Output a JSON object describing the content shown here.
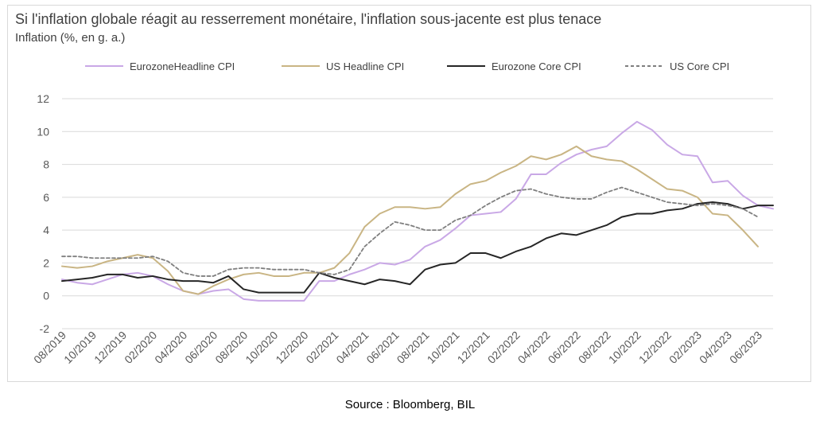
{
  "title": "Si l'inflation globale réagit au resserrement monétaire, l'inflation sous-jacente est plus tenace",
  "subtitle": "Inflation (%, en g. a.)",
  "source": "Source : Bloomberg, BIL",
  "chart_data": {
    "type": "line",
    "title": "Si l'inflation globale réagit au resserrement monétaire, l'inflation sous-jacente est plus tenace",
    "ylabel": "Inflation (%, en g. a.)",
    "xlabel": "",
    "ylim": [
      -2,
      12
    ],
    "yticks": [
      -2,
      0,
      2,
      4,
      6,
      8,
      10,
      12
    ],
    "grid": true,
    "legend_position": "top",
    "x": [
      "08/2019",
      "09/2019",
      "10/2019",
      "11/2019",
      "12/2019",
      "01/2020",
      "02/2020",
      "03/2020",
      "04/2020",
      "05/2020",
      "06/2020",
      "07/2020",
      "08/2020",
      "09/2020",
      "10/2020",
      "11/2020",
      "12/2020",
      "01/2021",
      "02/2021",
      "03/2021",
      "04/2021",
      "05/2021",
      "06/2021",
      "07/2021",
      "08/2021",
      "09/2021",
      "10/2021",
      "11/2021",
      "12/2021",
      "01/2022",
      "02/2022",
      "03/2022",
      "04/2022",
      "05/2022",
      "06/2022",
      "07/2022",
      "08/2022",
      "09/2022",
      "10/2022",
      "11/2022",
      "12/2022",
      "01/2023",
      "02/2023",
      "03/2023",
      "04/2023",
      "05/2023",
      "06/2023",
      "07/2023"
    ],
    "xtick_labels": [
      "08/2019",
      "10/2019",
      "12/2019",
      "02/2020",
      "04/2020",
      "06/2020",
      "08/2020",
      "10/2020",
      "12/2020",
      "02/2021",
      "04/2021",
      "06/2021",
      "08/2021",
      "10/2021",
      "12/2021",
      "02/2022",
      "04/2022",
      "06/2022",
      "08/2022",
      "10/2022",
      "12/2022",
      "02/2023",
      "04/2023",
      "06/2023"
    ],
    "series": [
      {
        "name": "EurozoneHeadline CPI",
        "color": "#c9a8e6",
        "dash": false,
        "values": [
          1.0,
          0.8,
          0.7,
          1.0,
          1.3,
          1.4,
          1.2,
          0.7,
          0.3,
          0.1,
          0.3,
          0.4,
          -0.2,
          -0.3,
          -0.3,
          -0.3,
          -0.3,
          0.9,
          0.9,
          1.3,
          1.6,
          2.0,
          1.9,
          2.2,
          3.0,
          3.4,
          4.1,
          4.9,
          5.0,
          5.1,
          5.9,
          7.4,
          7.4,
          8.1,
          8.6,
          8.9,
          9.1,
          9.9,
          10.6,
          10.1,
          9.2,
          8.6,
          8.5,
          6.9,
          7.0,
          6.1,
          5.5,
          5.3
        ]
      },
      {
        "name": "US Headline CPI",
        "color": "#c9b584",
        "dash": false,
        "values": [
          1.8,
          1.7,
          1.8,
          2.1,
          2.3,
          2.5,
          2.3,
          1.5,
          0.3,
          0.1,
          0.6,
          1.0,
          1.3,
          1.4,
          1.2,
          1.2,
          1.4,
          1.4,
          1.7,
          2.6,
          4.2,
          5.0,
          5.4,
          5.4,
          5.3,
          5.4,
          6.2,
          6.8,
          7.0,
          7.5,
          7.9,
          8.5,
          8.3,
          8.6,
          9.1,
          8.5,
          8.3,
          8.2,
          7.7,
          7.1,
          6.5,
          6.4,
          6.0,
          5.0,
          4.9,
          4.0,
          3.0,
          null
        ]
      },
      {
        "name": "Eurozone Core CPI",
        "color": "#262626",
        "dash": false,
        "values": [
          0.9,
          1.0,
          1.1,
          1.3,
          1.3,
          1.1,
          1.2,
          1.0,
          0.9,
          0.9,
          0.8,
          1.2,
          0.4,
          0.2,
          0.2,
          0.2,
          0.2,
          1.4,
          1.1,
          0.9,
          0.7,
          1.0,
          0.9,
          0.7,
          1.6,
          1.9,
          2.0,
          2.6,
          2.6,
          2.3,
          2.7,
          3.0,
          3.5,
          3.8,
          3.7,
          4.0,
          4.3,
          4.8,
          5.0,
          5.0,
          5.2,
          5.3,
          5.6,
          5.7,
          5.6,
          5.3,
          5.5,
          5.5
        ]
      },
      {
        "name": "US Core CPI",
        "color": "#7f7f7f",
        "dash": true,
        "values": [
          2.4,
          2.4,
          2.3,
          2.3,
          2.3,
          2.3,
          2.4,
          2.1,
          1.4,
          1.2,
          1.2,
          1.6,
          1.7,
          1.7,
          1.6,
          1.6,
          1.6,
          1.4,
          1.3,
          1.6,
          3.0,
          3.8,
          4.5,
          4.3,
          4.0,
          4.0,
          4.6,
          4.9,
          5.5,
          6.0,
          6.4,
          6.5,
          6.2,
          6.0,
          5.9,
          5.9,
          6.3,
          6.6,
          6.3,
          6.0,
          5.7,
          5.6,
          5.5,
          5.6,
          5.5,
          5.3,
          4.8,
          null
        ]
      }
    ]
  }
}
